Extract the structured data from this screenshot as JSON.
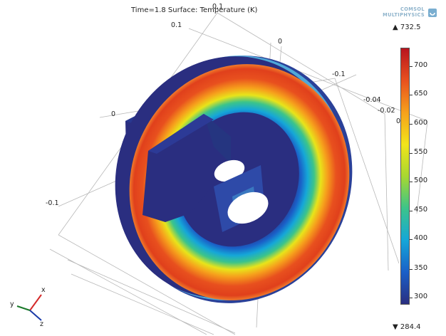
{
  "plot": {
    "title": "Time=1.8  Surface: Temperature (K)",
    "axis_labels": {
      "top_a": "0.1",
      "top_b": "0.1",
      "top_zero": "0",
      "right_a": "-0.1",
      "right_b": "-0.04",
      "right_c": "-0.02",
      "right_zero": "0",
      "left_zero": "0",
      "left_neg": "-0.1"
    }
  },
  "logo": {
    "line1": "COMSOL",
    "line2": "MULTIPHYSICS"
  },
  "colorbar": {
    "max_label": "▲ 732.5",
    "min_label": "▼ 284.4",
    "ticks": [
      "700",
      "650",
      "600",
      "550",
      "500",
      "450",
      "400",
      "350",
      "300"
    ],
    "colors": [
      "#2a2e80",
      "#1a60c8",
      "#15a7d8",
      "#3cc48a",
      "#a8d830",
      "#f2e41a",
      "#f6a01c",
      "#e8501e",
      "#b8141e"
    ]
  },
  "triad": {
    "x": "x",
    "y": "y",
    "z": "z"
  }
}
